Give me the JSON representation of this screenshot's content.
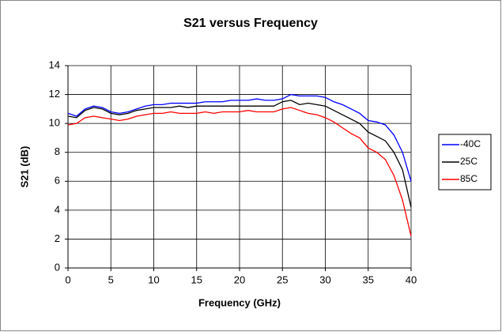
{
  "chart_data": {
    "type": "line",
    "title": "S21 versus Frequency",
    "xlabel": "Frequency (GHz)",
    "ylabel": "S21 (dB)",
    "x": [
      0,
      1,
      2,
      3,
      4,
      5,
      6,
      7,
      8,
      9,
      10,
      11,
      12,
      13,
      14,
      15,
      16,
      17,
      18,
      19,
      20,
      21,
      22,
      23,
      24,
      25,
      26,
      27,
      28,
      29,
      30,
      31,
      32,
      33,
      34,
      35,
      36,
      37,
      38,
      39,
      40
    ],
    "series": [
      {
        "name": "-40C",
        "color": "#0000ff",
        "values": [
          10.7,
          10.5,
          11.0,
          11.2,
          11.1,
          10.8,
          10.7,
          10.8,
          11.0,
          11.2,
          11.3,
          11.3,
          11.4,
          11.4,
          11.4,
          11.4,
          11.5,
          11.5,
          11.5,
          11.6,
          11.6,
          11.6,
          11.7,
          11.6,
          11.6,
          11.7,
          12.0,
          11.9,
          11.9,
          11.9,
          11.8,
          11.5,
          11.3,
          11.0,
          10.7,
          10.2,
          10.1,
          9.9,
          9.2,
          8.0,
          6.0
        ]
      },
      {
        "name": "25C",
        "color": "#000000",
        "values": [
          10.5,
          10.4,
          10.9,
          11.1,
          11.0,
          10.7,
          10.6,
          10.7,
          10.9,
          11.0,
          11.1,
          11.1,
          11.1,
          11.2,
          11.1,
          11.2,
          11.2,
          11.2,
          11.2,
          11.2,
          11.2,
          11.2,
          11.2,
          11.2,
          11.2,
          11.5,
          11.6,
          11.3,
          11.4,
          11.3,
          11.2,
          10.9,
          10.6,
          10.3,
          10.0,
          9.4,
          9.1,
          8.8,
          8.0,
          6.8,
          4.2
        ]
      },
      {
        "name": "85C",
        "color": "#ff0000",
        "values": [
          9.9,
          10.0,
          10.4,
          10.5,
          10.4,
          10.3,
          10.2,
          10.3,
          10.5,
          10.6,
          10.7,
          10.7,
          10.8,
          10.7,
          10.7,
          10.7,
          10.8,
          10.7,
          10.8,
          10.8,
          10.8,
          10.9,
          10.8,
          10.8,
          10.8,
          11.0,
          11.1,
          10.9,
          10.7,
          10.6,
          10.4,
          10.1,
          9.7,
          9.3,
          9.0,
          8.3,
          8.0,
          7.5,
          6.4,
          4.7,
          2.2
        ]
      }
    ],
    "xlim": [
      0,
      40
    ],
    "xticks": [
      0,
      5,
      10,
      15,
      20,
      25,
      30,
      35,
      40
    ],
    "ylim": [
      0,
      14
    ],
    "yticks": [
      0,
      2,
      4,
      6,
      8,
      10,
      12,
      14
    ],
    "grid": true,
    "legend": "right"
  }
}
